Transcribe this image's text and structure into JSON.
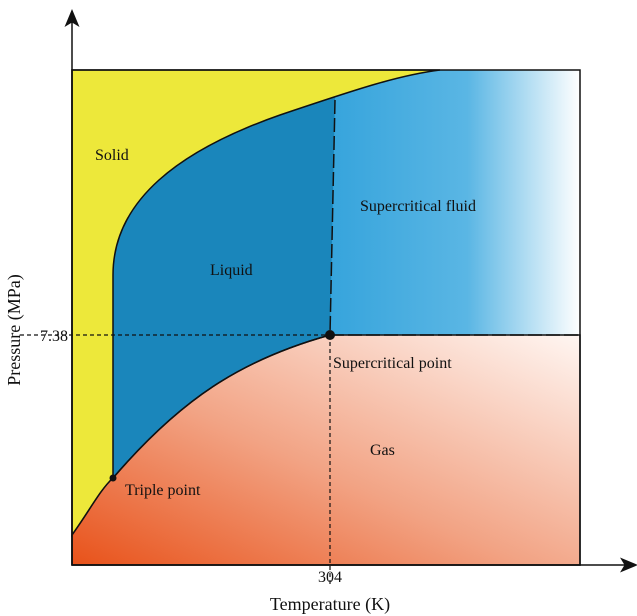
{
  "regions": {
    "solid": "Solid",
    "liquid": "Liquid",
    "supercritical_fluid": "Supercritical fluid",
    "gas": "Gas"
  },
  "points": {
    "triple": "Triple point",
    "critical": "Supercritical point"
  },
  "axes": {
    "x_label": "Temperature (K)",
    "y_label": "Pressure (MPa)",
    "x_tick": "304",
    "y_tick": "7.38"
  }
}
